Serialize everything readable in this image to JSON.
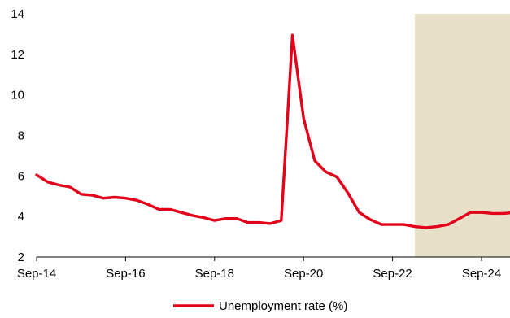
{
  "chart_data": {
    "type": "line",
    "title": "",
    "xlabel": "",
    "ylabel": "",
    "ylim": [
      2,
      14
    ],
    "yticks": [
      2,
      4,
      6,
      8,
      10,
      12,
      14
    ],
    "xticks": [
      "Sep-14",
      "Sep-16",
      "Sep-18",
      "Sep-20",
      "Sep-22",
      "Sep-24"
    ],
    "grid": false,
    "legend_position": "bottom-center",
    "forecast_shading": {
      "from": "2023-03",
      "to": "2025-03",
      "color": "#e8dfc8"
    },
    "series": [
      {
        "name": "Unemployment rate (%)",
        "color": "#e2001a",
        "points": [
          [
            "2014-09",
            6.05
          ],
          [
            "2014-12",
            5.7
          ],
          [
            "2015-03",
            5.55
          ],
          [
            "2015-06",
            5.45
          ],
          [
            "2015-09",
            5.1
          ],
          [
            "2015-12",
            5.05
          ],
          [
            "2016-03",
            4.9
          ],
          [
            "2016-06",
            4.95
          ],
          [
            "2016-09",
            4.9
          ],
          [
            "2016-12",
            4.8
          ],
          [
            "2017-03",
            4.6
          ],
          [
            "2017-06",
            4.35
          ],
          [
            "2017-09",
            4.35
          ],
          [
            "2017-12",
            4.2
          ],
          [
            "2018-03",
            4.05
          ],
          [
            "2018-06",
            3.95
          ],
          [
            "2018-09",
            3.8
          ],
          [
            "2018-12",
            3.9
          ],
          [
            "2019-03",
            3.9
          ],
          [
            "2019-06",
            3.7
          ],
          [
            "2019-09",
            3.7
          ],
          [
            "2019-12",
            3.65
          ],
          [
            "2020-03",
            3.8
          ],
          [
            "2020-06",
            12.95
          ],
          [
            "2020-09",
            8.85
          ],
          [
            "2020-12",
            6.75
          ],
          [
            "2021-03",
            6.2
          ],
          [
            "2021-06",
            5.95
          ],
          [
            "2021-09",
            5.15
          ],
          [
            "2021-12",
            4.2
          ],
          [
            "2022-03",
            3.85
          ],
          [
            "2022-06",
            3.6
          ],
          [
            "2022-09",
            3.6
          ],
          [
            "2022-12",
            3.6
          ],
          [
            "2023-03",
            3.5
          ],
          [
            "2023-06",
            3.45
          ],
          [
            "2023-09",
            3.5
          ],
          [
            "2023-12",
            3.6
          ],
          [
            "2024-03",
            3.9
          ],
          [
            "2024-06",
            4.2
          ],
          [
            "2024-09",
            4.2
          ],
          [
            "2024-12",
            4.15
          ],
          [
            "2025-03",
            4.15
          ],
          [
            "2025-06",
            4.2
          ]
        ]
      }
    ]
  }
}
